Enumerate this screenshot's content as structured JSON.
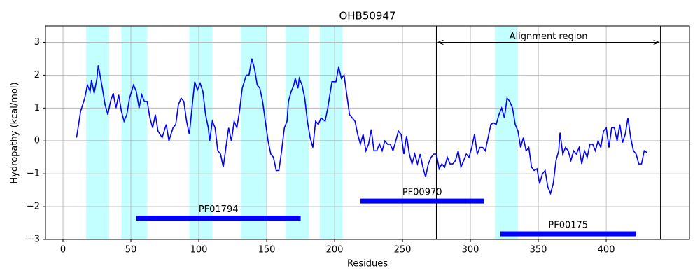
{
  "chart_data": {
    "type": "line",
    "title": "OHB50947",
    "x_label": "Residues",
    "y_label": "Hydropathy (kcal/mol)",
    "color": "#0000ff",
    "x": [
      10,
      13,
      16,
      18,
      20,
      21,
      23,
      25,
      26,
      29,
      31,
      33,
      35,
      37,
      39,
      41,
      43,
      45,
      47,
      49,
      52,
      54,
      56,
      58,
      60,
      62,
      64,
      66,
      68,
      70,
      73,
      76,
      78,
      81,
      83,
      85,
      87,
      89,
      91,
      93,
      95,
      97,
      99,
      101,
      103,
      105,
      107,
      108,
      110,
      112,
      114,
      116,
      118,
      120,
      122,
      124,
      126,
      128,
      130,
      132,
      135,
      137,
      139,
      141,
      143,
      145,
      147,
      149,
      151,
      153,
      155,
      157,
      159,
      161,
      163,
      165,
      166,
      168,
      170,
      171,
      173,
      174,
      176,
      178,
      180,
      182,
      184,
      186,
      188,
      190,
      193,
      195,
      198,
      201,
      203,
      205,
      207,
      209,
      211,
      213,
      215,
      217,
      219,
      221,
      223,
      225,
      227,
      229,
      231,
      233,
      235,
      237,
      239,
      241,
      243,
      245,
      247,
      249,
      251,
      253,
      255,
      257,
      259,
      261,
      263,
      265,
      267,
      269,
      271,
      273,
      275,
      277,
      279,
      281,
      283,
      285,
      287,
      289,
      291,
      293,
      295,
      297,
      299,
      301,
      303,
      305,
      307,
      309,
      311,
      313,
      315,
      317,
      319,
      321,
      323,
      325,
      327,
      329,
      331,
      333,
      335,
      337,
      339,
      341,
      343,
      345,
      347,
      349,
      351,
      353,
      355,
      357,
      359,
      361,
      363,
      365,
      366,
      368,
      370,
      372,
      374,
      376,
      378,
      380,
      382,
      384,
      386,
      388,
      390,
      392,
      394,
      396,
      398,
      400,
      402,
      404,
      406,
      408,
      410,
      412,
      414,
      416,
      418,
      420,
      422,
      424,
      426,
      428,
      430
    ],
    "values": [
      0.1,
      0.9,
      1.3,
      1.7,
      1.5,
      1.85,
      1.45,
      1.9,
      2.3,
      1.6,
      1.1,
      0.8,
      1.2,
      1.45,
      1.0,
      1.4,
      0.9,
      0.6,
      0.8,
      1.3,
      1.7,
      1.5,
      1.0,
      1.4,
      1.2,
      1.2,
      0.7,
      0.4,
      0.8,
      0.3,
      0.1,
      0.5,
      0.0,
      0.4,
      0.5,
      1.1,
      1.3,
      1.2,
      0.6,
      0.2,
      1.0,
      1.8,
      1.55,
      1.75,
      1.5,
      0.8,
      0.4,
      0.0,
      0.6,
      0.4,
      -0.3,
      -0.4,
      -0.8,
      -0.2,
      0.4,
      0.0,
      0.6,
      0.4,
      0.9,
      1.6,
      2.0,
      2.0,
      2.5,
      2.2,
      1.7,
      1.6,
      1.2,
      0.6,
      0.0,
      -0.4,
      -0.5,
      -0.9,
      -0.9,
      -0.3,
      0.4,
      0.6,
      1.2,
      1.5,
      1.7,
      1.9,
      1.6,
      1.9,
      1.7,
      1.3,
      0.6,
      0.1,
      -0.2,
      0.6,
      0.5,
      0.7,
      0.6,
      1.0,
      1.8,
      1.8,
      2.25,
      1.9,
      2.0,
      1.4,
      0.8,
      0.7,
      0.6,
      0.2,
      -0.1,
      0.2,
      -0.3,
      -0.1,
      0.35,
      -0.3,
      -0.3,
      -0.1,
      -0.3,
      0.0,
      -0.1,
      -0.1,
      -0.3,
      0.0,
      0.3,
      0.2,
      -0.4,
      0.15,
      -0.4,
      -0.7,
      -0.4,
      -0.7,
      -0.4,
      -0.8,
      -1.1,
      -0.7,
      -0.5,
      -0.4,
      -0.4,
      -0.85,
      -0.7,
      -0.8,
      -0.5,
      -0.7,
      -0.7,
      -0.6,
      -0.3,
      -0.8,
      -0.6,
      -0.4,
      -0.5,
      -0.2,
      0.2,
      -0.4,
      -0.2,
      -0.2,
      -0.3,
      0.1,
      0.5,
      0.55,
      0.5,
      0.8,
      1.0,
      0.7,
      1.3,
      1.2,
      1.0,
      0.5,
      0.3,
      -0.2,
      0.1,
      -0.3,
      -0.2,
      -0.8,
      -0.9,
      -0.85,
      -1.3,
      -1.0,
      -0.9,
      -1.4,
      -1.6,
      -1.3,
      -0.6,
      -0.3,
      0.25,
      -0.4,
      -0.2,
      -0.3,
      -0.6,
      -0.3,
      -0.4,
      -0.2,
      -0.7,
      -0.3,
      -0.5,
      -0.1,
      -0.1,
      -0.3,
      0.0,
      -0.2,
      0.3,
      0.4,
      -0.2,
      0.4,
      0.4,
      0.0,
      0.5,
      -0.05,
      0.2,
      0.7,
      0.1,
      -0.3,
      -0.4,
      -0.7,
      -0.7,
      -0.3,
      -0.35
    ],
    "xlim": [
      -12.9,
      461.3
    ],
    "ylim": [
      -3,
      3.5
    ],
    "xticks": [
      0,
      50,
      100,
      150,
      200,
      250,
      300,
      350,
      400
    ],
    "yticks": [
      {
        "value": -3,
        "label": "−3"
      },
      {
        "value": -2,
        "label": "−2"
      },
      {
        "value": -1,
        "label": "−1"
      },
      0,
      1,
      2,
      3
    ],
    "grid": true,
    "highlight_color": "#c4ffff",
    "highlight_regions": [
      [
        17,
        34
      ],
      [
        43,
        62
      ],
      [
        93,
        110
      ],
      [
        131,
        150
      ],
      [
        164,
        181
      ],
      [
        189,
        206
      ],
      [
        318,
        335
      ]
    ],
    "vlines": [
      275,
      440
    ],
    "annotation": {
      "text": "Alignment region",
      "y": 3
    },
    "domains": [
      {
        "label": "PF01794",
        "start": 54,
        "end": 175,
        "y": -2.35
      },
      {
        "label": "PF00970",
        "start": 219,
        "end": 310,
        "y": -1.83
      },
      {
        "label": "PF00175",
        "start": 322,
        "end": 422,
        "y": -2.83
      }
    ]
  }
}
